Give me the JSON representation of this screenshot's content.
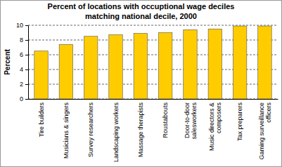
{
  "chart_data": {
    "type": "bar",
    "title": "Percent of locations with occuptional wage deciles matching national decile, 2000",
    "y_label": "Percent",
    "categories": [
      "Tire builders",
      "Musicians & singers",
      "Survey researchers",
      "Landscaping workers",
      "Massage therapists",
      "Roustabouts",
      "Door-to-door salesworkers",
      "Music directors & composers",
      "Tax preparers",
      "Gaming surveillance officers"
    ],
    "values": [
      6.5,
      7.4,
      8.5,
      8.7,
      8.9,
      9.0,
      9.4,
      9.5,
      9.9,
      9.9
    ],
    "color": "#ffcc00",
    "ylim": [
      0,
      10
    ],
    "yticks": [
      0,
      2,
      4,
      6,
      8,
      10
    ],
    "grid": true
  }
}
